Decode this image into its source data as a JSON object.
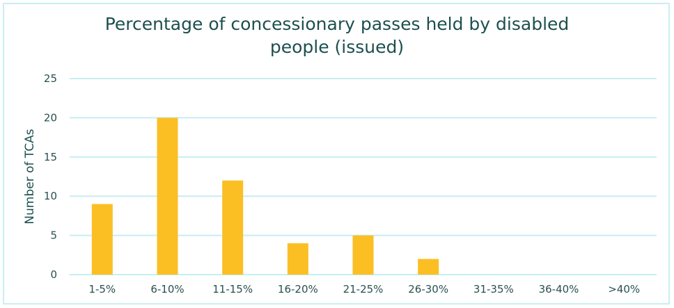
{
  "chart_data": {
    "type": "bar",
    "title_lines": [
      "Percentage of concessionary passes held by disabled",
      "people (issued)"
    ],
    "xlabel": "",
    "ylabel": "Number of TCAs",
    "categories": [
      "1-5%",
      "6-10%",
      "11-15%",
      "16-20%",
      "21-25%",
      "26-30%",
      "31-35%",
      "36-40%",
      ">40%"
    ],
    "values": [
      9,
      20,
      12,
      4,
      5,
      2,
      0,
      0,
      0
    ],
    "ylim": [
      0,
      25
    ],
    "yticks": [
      "0",
      "5",
      "10",
      "15",
      "20",
      "25"
    ],
    "grid": true,
    "colors": {
      "bar": "#FBBF24",
      "grid": "#C6EEF4",
      "text": "#1D4F4F"
    }
  }
}
